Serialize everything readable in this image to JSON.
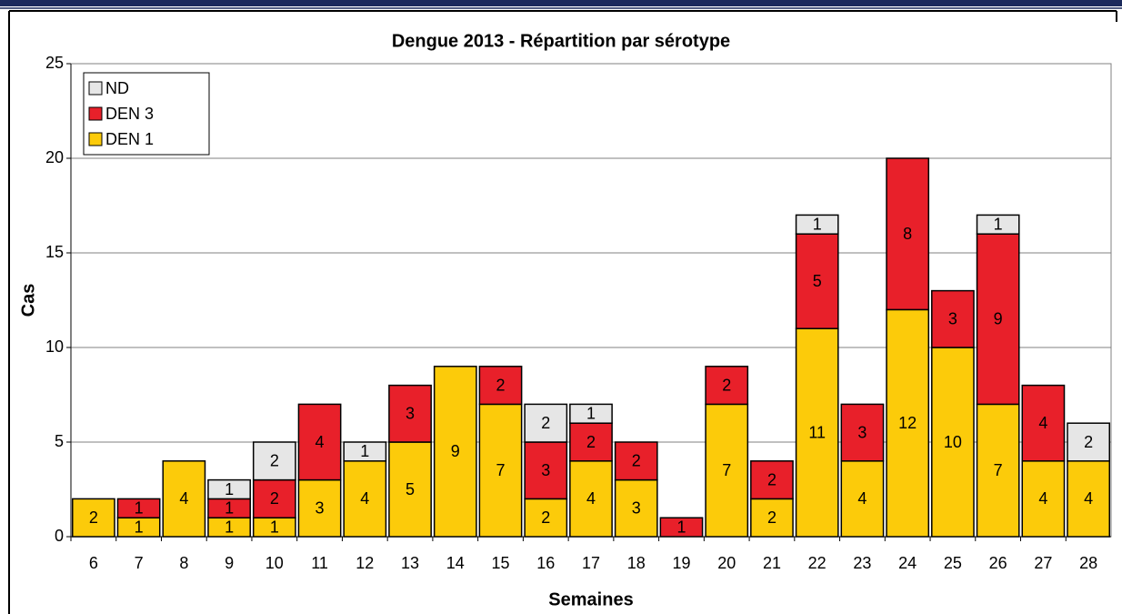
{
  "chart_data": {
    "type": "stacked_bar",
    "title": "Dengue 2013 - Répartition par sérotype",
    "x_label": "Semaines",
    "y_label": "Cas",
    "categories": [
      "6",
      "7",
      "8",
      "9",
      "10",
      "11",
      "12",
      "13",
      "14",
      "15",
      "16",
      "17",
      "18",
      "19",
      "20",
      "21",
      "22",
      "23",
      "24",
      "25",
      "26",
      "27",
      "28"
    ],
    "series": [
      {
        "name": "DEN 1",
        "color": "#fccb0a",
        "values": [
          2,
          1,
          4,
          1,
          1,
          3,
          4,
          5,
          9,
          7,
          2,
          4,
          3,
          0,
          7,
          2,
          11,
          4,
          12,
          10,
          7,
          4,
          4
        ]
      },
      {
        "name": "DEN 3",
        "color": "#e8202a",
        "values": [
          0,
          1,
          0,
          1,
          2,
          4,
          0,
          3,
          0,
          2,
          3,
          2,
          2,
          1,
          2,
          2,
          5,
          3,
          8,
          3,
          9,
          4,
          0
        ]
      },
      {
        "name": "ND",
        "color": "#e6e6e6",
        "values": [
          0,
          0,
          0,
          1,
          2,
          0,
          1,
          0,
          0,
          0,
          2,
          1,
          0,
          0,
          0,
          0,
          1,
          0,
          0,
          0,
          1,
          0,
          2
        ]
      }
    ],
    "ylim": [
      0,
      25
    ],
    "yticks": [
      0,
      5,
      10,
      15,
      20,
      25
    ],
    "grid": true,
    "legend": "top-left"
  }
}
